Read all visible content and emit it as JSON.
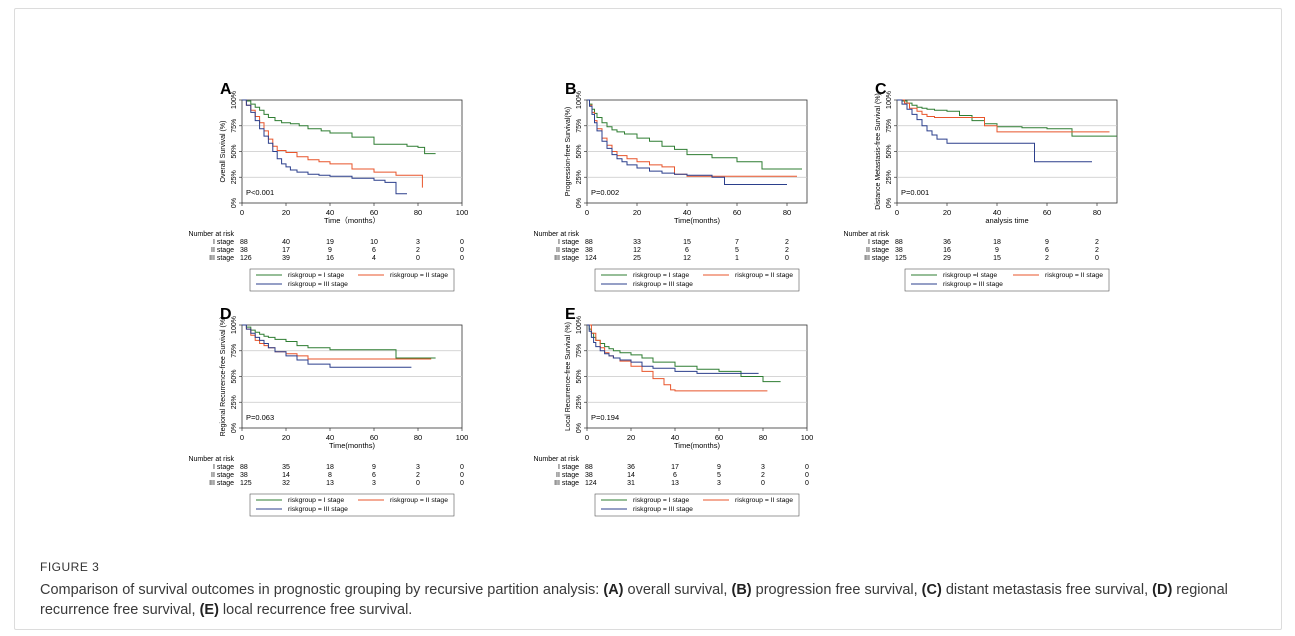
{
  "figure": {
    "label": "FIGURE 3",
    "caption_parts": [
      {
        "text": "Comparison of survival outcomes in prognostic grouping by recursive partition analysis: ",
        "bold": false
      },
      {
        "text": "(A)",
        "bold": true
      },
      {
        "text": " overall survival, ",
        "bold": false
      },
      {
        "text": "(B)",
        "bold": true
      },
      {
        "text": " progression free survival, ",
        "bold": false
      },
      {
        "text": "(C)",
        "bold": true
      },
      {
        "text": " distant metastasis free survival, ",
        "bold": false
      },
      {
        "text": "(D)",
        "bold": true
      },
      {
        "text": " regional recurrence free survival, ",
        "bold": false
      },
      {
        "text": "(E)",
        "bold": true
      },
      {
        "text": " local recurrence free survival.",
        "bold": false
      }
    ]
  },
  "colors": {
    "I": "#2e7d32",
    "II": "#e8552b",
    "III": "#2b3f8c",
    "grid": "#c8c8c8"
  },
  "chart_data": [
    {
      "panel": "A",
      "type": "line",
      "ylabel": "Overall Survival (%)",
      "xlabel": "Time（months）",
      "xlim": [
        0,
        100
      ],
      "ylim": [
        0,
        100
      ],
      "xticks": [
        "0",
        "20",
        "40",
        "60",
        "80",
        "100"
      ],
      "yticks": [
        "0%",
        "25%",
        "50%",
        "75%",
        "100%"
      ],
      "pvalue": "P<0.001",
      "risk_header": "Number at risk",
      "risk_times": [
        0,
        20,
        40,
        60,
        80,
        100
      ],
      "risk_rows": [
        {
          "label": "I stage",
          "values": [
            "88",
            "40",
            "19",
            "10",
            "3",
            "0"
          ]
        },
        {
          "label": "II stage",
          "values": [
            "38",
            "17",
            "9",
            "6",
            "2",
            "0"
          ]
        },
        {
          "label": "III stage",
          "values": [
            "126",
            "39",
            "16",
            "4",
            "0",
            "0"
          ]
        }
      ],
      "legend": [
        "riskgroup = I stage",
        "riskgroup = II stage",
        "riskgroup = III stage"
      ],
      "series": [
        {
          "group": "I",
          "x": [
            0,
            2,
            4,
            6,
            8,
            10,
            12,
            15,
            18,
            22,
            26,
            30,
            36,
            40,
            50,
            60,
            75,
            80,
            83,
            88
          ],
          "y": [
            100,
            99,
            96,
            93,
            90,
            86,
            83,
            80,
            78,
            77,
            75,
            72,
            70,
            68,
            64,
            57,
            55,
            54,
            48,
            48
          ]
        },
        {
          "group": "II",
          "x": [
            0,
            2,
            4,
            6,
            8,
            10,
            12,
            14,
            16,
            20,
            25,
            30,
            35,
            40,
            50,
            60,
            70,
            82,
            82
          ],
          "y": [
            100,
            95,
            90,
            84,
            78,
            70,
            62,
            55,
            51,
            49,
            45,
            42,
            40,
            38,
            33,
            30,
            27,
            27,
            15
          ]
        },
        {
          "group": "III",
          "x": [
            0,
            2,
            4,
            6,
            8,
            10,
            12,
            14,
            16,
            18,
            20,
            22,
            25,
            30,
            35,
            40,
            50,
            60,
            65,
            70,
            75
          ],
          "y": [
            100,
            95,
            88,
            80,
            72,
            65,
            58,
            50,
            43,
            38,
            35,
            32,
            30,
            28,
            27,
            26,
            24,
            22,
            20,
            9,
            9
          ]
        }
      ]
    },
    {
      "panel": "B",
      "type": "line",
      "ylabel": "Progression-free Survival(%)",
      "xlabel": "Time(months)",
      "xlim": [
        0,
        88
      ],
      "ylim": [
        0,
        100
      ],
      "xticks": [
        "0",
        "20",
        "40",
        "60",
        "80"
      ],
      "yticks": [
        "0%",
        "25%",
        "50%",
        "75%",
        "100%"
      ],
      "pvalue": "P=0.002",
      "risk_header": "Number at risk",
      "risk_times": [
        0,
        20,
        40,
        60,
        80
      ],
      "risk_rows": [
        {
          "label": "I stage",
          "values": [
            "88",
            "33",
            "15",
            "7",
            "2"
          ]
        },
        {
          "label": "II stage",
          "values": [
            "38",
            "12",
            "6",
            "5",
            "2"
          ]
        },
        {
          "label": "III stage",
          "values": [
            "124",
            "25",
            "12",
            "1",
            "0"
          ]
        }
      ],
      "legend": [
        "riskgroup = I stage",
        "riskgroup = II stage",
        "riskgroup = III stage"
      ],
      "series": [
        {
          "group": "I",
          "x": [
            0,
            1,
            2,
            3,
            4,
            6,
            8,
            10,
            12,
            15,
            20,
            25,
            30,
            35,
            40,
            50,
            60,
            70,
            80,
            86
          ],
          "y": [
            100,
            96,
            91,
            87,
            83,
            78,
            74,
            71,
            69,
            67,
            63,
            60,
            55,
            52,
            47,
            44,
            40,
            33,
            33,
            33
          ]
        },
        {
          "group": "II",
          "x": [
            0,
            1,
            2,
            3,
            4,
            6,
            8,
            10,
            12,
            16,
            20,
            25,
            30,
            35,
            40,
            60,
            80,
            84
          ],
          "y": [
            100,
            95,
            88,
            80,
            72,
            63,
            56,
            50,
            46,
            43,
            40,
            37,
            35,
            28,
            26,
            26,
            26,
            26
          ]
        },
        {
          "group": "III",
          "x": [
            0,
            1,
            2,
            3,
            4,
            6,
            8,
            10,
            12,
            14,
            16,
            20,
            25,
            30,
            35,
            40,
            50,
            55,
            55,
            70,
            80
          ],
          "y": [
            100,
            94,
            86,
            78,
            70,
            60,
            53,
            47,
            43,
            40,
            37,
            34,
            31,
            29,
            28,
            27,
            25,
            25,
            18,
            18,
            18
          ]
        }
      ]
    },
    {
      "panel": "C",
      "type": "line",
      "ylabel": "Distance Metastasis-free Survival (%)",
      "xlabel": "analysis time",
      "xlim": [
        0,
        88
      ],
      "ylim": [
        0,
        100
      ],
      "xticks": [
        "0",
        "20",
        "40",
        "60",
        "80"
      ],
      "yticks": [
        "0%",
        "25%",
        "50%",
        "75%",
        "100%"
      ],
      "pvalue": "P=0.001",
      "risk_header": "Number at risk",
      "risk_times": [
        0,
        20,
        40,
        60,
        80
      ],
      "risk_rows": [
        {
          "label": "I stage",
          "values": [
            "88",
            "36",
            "18",
            "9",
            "2"
          ]
        },
        {
          "label": "II stage",
          "values": [
            "38",
            "16",
            "9",
            "6",
            "2"
          ]
        },
        {
          "label": "III stage",
          "values": [
            "125",
            "29",
            "15",
            "2",
            "0"
          ]
        }
      ],
      "legend": [
        "riskgroup =I stage",
        "riskgroup = II stage",
        "riskgroup = III stage"
      ],
      "series": [
        {
          "group": "I",
          "x": [
            0,
            2,
            4,
            6,
            8,
            10,
            12,
            15,
            20,
            25,
            30,
            35,
            40,
            50,
            60,
            70,
            80,
            88
          ],
          "y": [
            100,
            99,
            97,
            95,
            93,
            92,
            91,
            90,
            89,
            85,
            80,
            77,
            74,
            73,
            72,
            65,
            65,
            65
          ]
        },
        {
          "group": "II",
          "x": [
            0,
            3,
            5,
            8,
            10,
            12,
            15,
            20,
            25,
            30,
            35,
            40,
            60,
            80,
            85
          ],
          "y": [
            100,
            97,
            92,
            89,
            86,
            84,
            83,
            83,
            83,
            83,
            75,
            69,
            69,
            69,
            69
          ]
        },
        {
          "group": "III",
          "x": [
            0,
            2,
            4,
            6,
            8,
            10,
            12,
            14,
            16,
            20,
            30,
            40,
            50,
            55,
            55,
            70,
            78
          ],
          "y": [
            100,
            96,
            91,
            86,
            81,
            75,
            70,
            66,
            62,
            58,
            58,
            58,
            58,
            58,
            40,
            40,
            40
          ]
        }
      ]
    },
    {
      "panel": "D",
      "type": "line",
      "ylabel": "Regional Recurrence-free Survival (%)",
      "xlabel": "Time(months)",
      "xlim": [
        0,
        100
      ],
      "ylim": [
        0,
        100
      ],
      "xticks": [
        "0",
        "20",
        "40",
        "60",
        "80",
        "100"
      ],
      "yticks": [
        "0%",
        "25%",
        "50%",
        "75%",
        "100%"
      ],
      "pvalue": "P=0.063",
      "risk_header": "Number at risk",
      "risk_times": [
        0,
        20,
        40,
        60,
        80,
        100
      ],
      "risk_rows": [
        {
          "label": "I stage",
          "values": [
            "88",
            "35",
            "18",
            "9",
            "3",
            "0"
          ]
        },
        {
          "label": "II stage",
          "values": [
            "38",
            "14",
            "8",
            "6",
            "2",
            "0"
          ]
        },
        {
          "label": "III stage",
          "values": [
            "125",
            "32",
            "13",
            "3",
            "0",
            "0"
          ]
        }
      ],
      "legend": [
        "riskgroup = I stage",
        "riskgroup = II stage",
        "riskgroup = III stage"
      ],
      "series": [
        {
          "group": "I",
          "x": [
            0,
            2,
            4,
            6,
            8,
            10,
            12,
            15,
            20,
            25,
            30,
            40,
            50,
            60,
            70,
            70,
            80,
            88
          ],
          "y": [
            100,
            98,
            95,
            93,
            91,
            89,
            88,
            86,
            84,
            80,
            78,
            76,
            76,
            76,
            76,
            68,
            68,
            68
          ]
        },
        {
          "group": "II",
          "x": [
            0,
            2,
            4,
            6,
            8,
            10,
            12,
            15,
            20,
            25,
            30,
            40,
            60,
            80,
            86
          ],
          "y": [
            100,
            96,
            90,
            85,
            82,
            80,
            78,
            74,
            72,
            70,
            67,
            67,
            67,
            67,
            67
          ]
        },
        {
          "group": "III",
          "x": [
            0,
            2,
            4,
            6,
            8,
            10,
            12,
            15,
            20,
            25,
            30,
            40,
            50,
            60,
            70,
            77
          ],
          "y": [
            100,
            96,
            92,
            88,
            85,
            82,
            78,
            74,
            70,
            66,
            62,
            59,
            59,
            59,
            59,
            59
          ]
        }
      ]
    },
    {
      "panel": "E",
      "type": "line",
      "ylabel": "Local Recurrence-free Survival (%)",
      "xlabel": "Time(months)",
      "xlim": [
        0,
        100
      ],
      "ylim": [
        0,
        100
      ],
      "xticks": [
        "0",
        "20",
        "40",
        "60",
        "80",
        "100"
      ],
      "yticks": [
        "0%",
        "25%",
        "50%",
        "75%",
        "100%"
      ],
      "pvalue": "P=0.194",
      "risk_header": "Number at risk",
      "risk_times": [
        0,
        20,
        40,
        60,
        80,
        100
      ],
      "risk_rows": [
        {
          "label": "I stage",
          "values": [
            "88",
            "36",
            "17",
            "9",
            "3",
            "0"
          ]
        },
        {
          "label": "II stage",
          "values": [
            "38",
            "14",
            "6",
            "5",
            "2",
            "0"
          ]
        },
        {
          "label": "III stage",
          "values": [
            "124",
            "31",
            "13",
            "3",
            "0",
            "0"
          ]
        }
      ],
      "legend": [
        "riskgroup = I stage",
        "riskgroup = II stage",
        "riskgroup = III stage"
      ],
      "series": [
        {
          "group": "I",
          "x": [
            0,
            1,
            2,
            3,
            4,
            6,
            8,
            10,
            12,
            15,
            20,
            25,
            30,
            40,
            50,
            60,
            70,
            80,
            88
          ],
          "y": [
            100,
            96,
            92,
            88,
            85,
            82,
            79,
            77,
            75,
            73,
            71,
            68,
            64,
            60,
            57,
            55,
            50,
            45,
            45
          ]
        },
        {
          "group": "II",
          "x": [
            0,
            2,
            4,
            6,
            8,
            10,
            12,
            15,
            20,
            25,
            30,
            35,
            38,
            40,
            50,
            60,
            70,
            82
          ],
          "y": [
            100,
            92,
            85,
            78,
            73,
            70,
            68,
            65,
            60,
            55,
            48,
            42,
            37,
            36,
            36,
            36,
            36,
            36
          ]
        },
        {
          "group": "III",
          "x": [
            0,
            1,
            2,
            3,
            4,
            6,
            8,
            10,
            12,
            15,
            20,
            25,
            30,
            40,
            50,
            60,
            70,
            78
          ],
          "y": [
            100,
            94,
            88,
            83,
            79,
            75,
            72,
            70,
            68,
            66,
            64,
            60,
            58,
            55,
            53,
            53,
            53,
            53
          ]
        }
      ]
    }
  ]
}
